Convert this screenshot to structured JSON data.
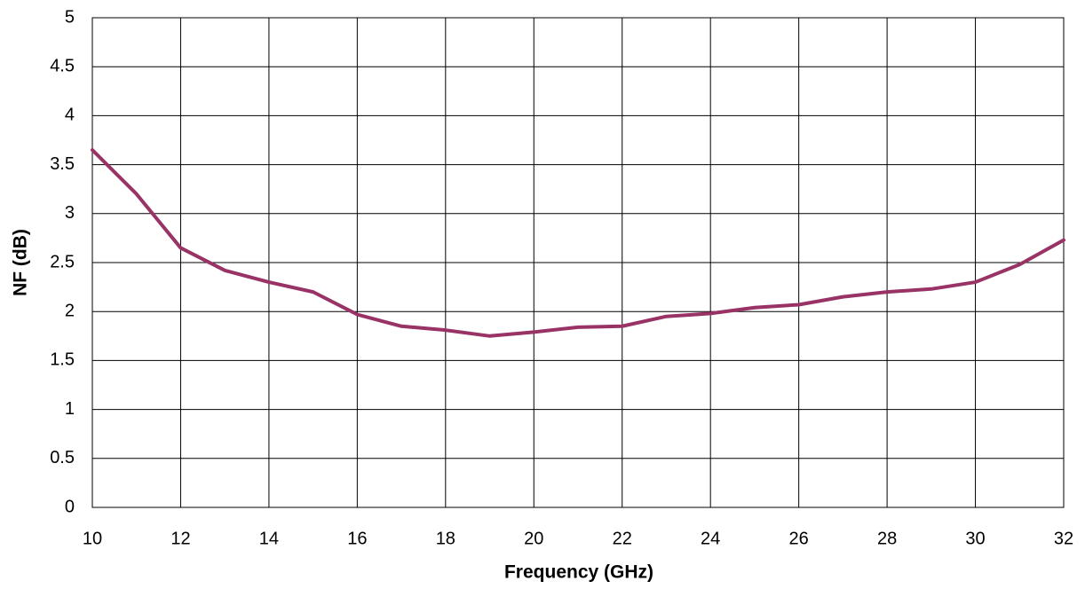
{
  "chart_data": {
    "type": "line",
    "x_label": "Frequency (GHz)",
    "y_label": "NF (dB)",
    "x": [
      10,
      11,
      12,
      13,
      14,
      15,
      16,
      17,
      18,
      19,
      20,
      21,
      22,
      23,
      24,
      25,
      26,
      27,
      28,
      29,
      30,
      31,
      32
    ],
    "series": [
      {
        "name": "NF",
        "color": "#993366",
        "values": [
          3.65,
          3.2,
          2.65,
          2.42,
          2.3,
          2.2,
          1.97,
          1.85,
          1.81,
          1.75,
          1.79,
          1.84,
          1.85,
          1.95,
          1.98,
          2.04,
          2.07,
          2.15,
          2.2,
          2.23,
          2.3,
          2.48,
          2.73
        ]
      }
    ],
    "xlim": [
      10,
      32
    ],
    "xticks": [
      10,
      12,
      14,
      16,
      18,
      20,
      22,
      24,
      26,
      28,
      30,
      32
    ],
    "ylim": [
      0,
      5
    ],
    "yticks": [
      0,
      0.5,
      1,
      1.5,
      2,
      2.5,
      3,
      3.5,
      4,
      4.5,
      5
    ],
    "grid": true
  }
}
